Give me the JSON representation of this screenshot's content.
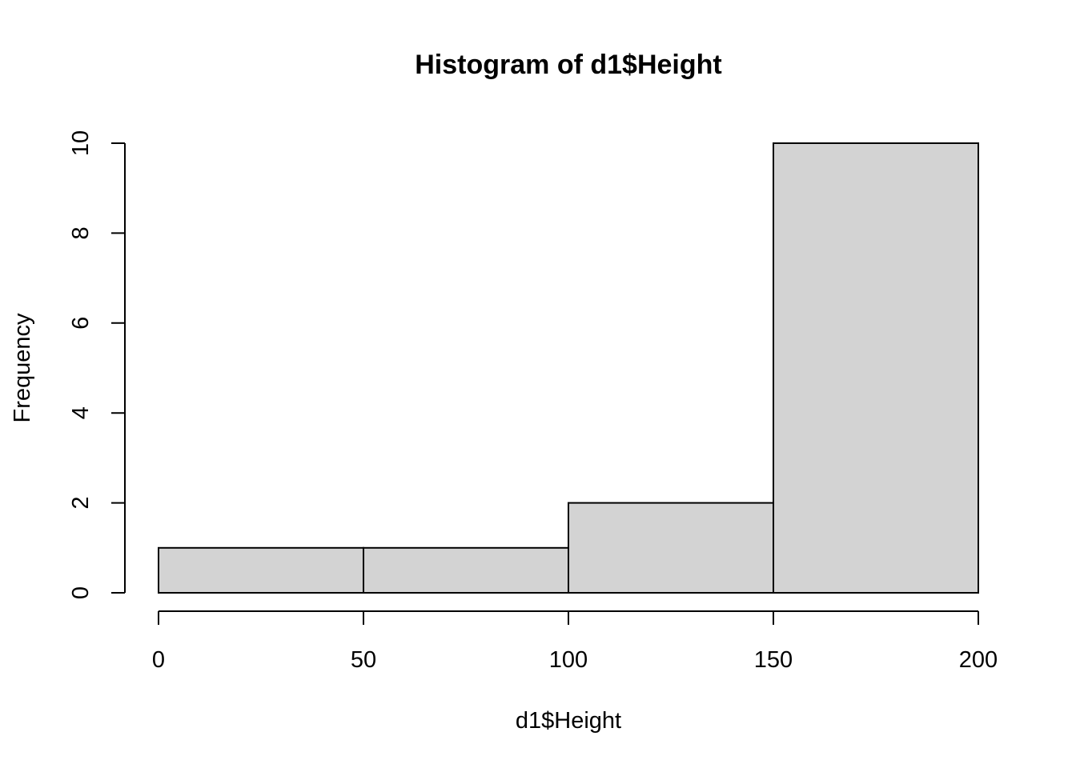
{
  "chart_data": {
    "type": "bar",
    "subtype": "histogram",
    "title": "Histogram of d1$Height",
    "xlabel": "d1$Height",
    "ylabel": "Frequency",
    "bins": [
      {
        "from": 0,
        "to": 50,
        "count": 1
      },
      {
        "from": 50,
        "to": 100,
        "count": 1
      },
      {
        "from": 100,
        "to": 150,
        "count": 2
      },
      {
        "from": 150,
        "to": 200,
        "count": 10
      }
    ],
    "xlim": [
      0,
      200
    ],
    "ylim": [
      0,
      10
    ],
    "x_ticks": [
      0,
      50,
      100,
      150,
      200
    ],
    "y_ticks": [
      0,
      2,
      4,
      6,
      8,
      10
    ],
    "bar_color": "#d3d3d3",
    "border_color": "#000000",
    "grid": false,
    "legend": "none"
  }
}
